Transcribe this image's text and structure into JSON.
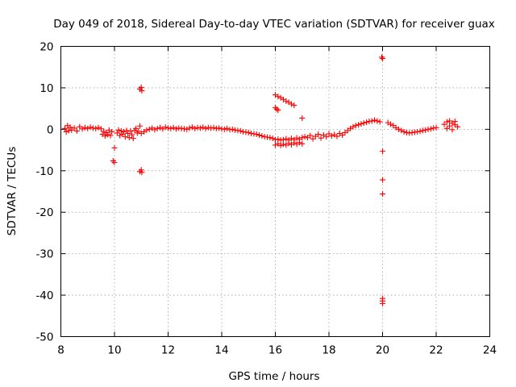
{
  "chart_data": {
    "type": "scatter",
    "title": "Day 049 of 2018, Sidereal Day-to-day VTEC variation (SDTVAR) for receiver guax",
    "xlabel": "GPS time / hours",
    "ylabel": "SDTVAR / TECUs",
    "xlim": [
      8,
      24
    ],
    "ylim": [
      -50,
      20
    ],
    "xticks": [
      "8",
      "10",
      "12",
      "14",
      "16",
      "18",
      "20",
      "22",
      "24"
    ],
    "yticks": [
      "20",
      "10",
      "0",
      "-10",
      "-20",
      "-30",
      "-40",
      "-50"
    ],
    "grid": true,
    "marker": "plus",
    "color": "#ff0000",
    "series": [
      {
        "name": "SDTVAR",
        "points": [
          [
            8.15,
            0.2
          ],
          [
            8.2,
            -0.6
          ],
          [
            8.25,
            0.9
          ],
          [
            8.3,
            -0.3
          ],
          [
            8.35,
            0.5
          ],
          [
            8.4,
            -0.2
          ],
          [
            8.5,
            0.3
          ],
          [
            8.6,
            -0.4
          ],
          [
            8.7,
            0.6
          ],
          [
            8.8,
            0.1
          ],
          [
            8.9,
            0.4
          ],
          [
            9.0,
            0.2
          ],
          [
            9.1,
            0.5
          ],
          [
            9.2,
            0.3
          ],
          [
            9.3,
            0.2
          ],
          [
            9.4,
            0.4
          ],
          [
            9.5,
            0.1
          ],
          [
            9.55,
            -1.2
          ],
          [
            9.6,
            -0.5
          ],
          [
            9.65,
            -1.6
          ],
          [
            9.7,
            -0.8
          ],
          [
            9.75,
            -1.3
          ],
          [
            9.8,
            -0.2
          ],
          [
            9.85,
            -1.5
          ],
          [
            9.9,
            -0.6
          ],
          [
            9.95,
            -7.6
          ],
          [
            10.0,
            -8.0
          ],
          [
            10.0,
            -4.5
          ],
          [
            10.1,
            -0.9
          ],
          [
            10.15,
            -0.2
          ],
          [
            10.2,
            -1.5
          ],
          [
            10.25,
            -0.4
          ],
          [
            10.3,
            -1.2
          ],
          [
            10.35,
            -0.6
          ],
          [
            10.4,
            -1.8
          ],
          [
            10.45,
            -0.3
          ],
          [
            10.5,
            -1.0
          ],
          [
            10.55,
            -2.0
          ],
          [
            10.6,
            -0.4
          ],
          [
            10.65,
            -1.3
          ],
          [
            10.7,
            -2.2
          ],
          [
            10.75,
            -0.3
          ],
          [
            10.8,
            0.2
          ],
          [
            10.85,
            -0.9
          ],
          [
            10.9,
            -0.5
          ],
          [
            10.95,
            0.8
          ],
          [
            11.0,
            -1.0
          ],
          [
            10.95,
            9.7
          ],
          [
            11.0,
            10.1
          ],
          [
            11.02,
            9.3
          ],
          [
            10.95,
            -10.2
          ],
          [
            11.0,
            -9.8
          ],
          [
            11.02,
            -10.4
          ],
          [
            11.1,
            -0.6
          ],
          [
            11.2,
            -0.2
          ],
          [
            11.3,
            0.0
          ],
          [
            11.4,
            0.3
          ],
          [
            11.5,
            -0.1
          ],
          [
            11.6,
            0.2
          ],
          [
            11.7,
            0.4
          ],
          [
            11.8,
            0.1
          ],
          [
            11.9,
            0.5
          ],
          [
            12.0,
            0.3
          ],
          [
            12.1,
            0.2
          ],
          [
            12.2,
            0.4
          ],
          [
            12.3,
            0.1
          ],
          [
            12.4,
            0.3
          ],
          [
            12.5,
            0.2
          ],
          [
            12.6,
            0.1
          ],
          [
            12.7,
            0.0
          ],
          [
            12.8,
            0.3
          ],
          [
            12.9,
            0.5
          ],
          [
            13.0,
            0.2
          ],
          [
            13.1,
            0.4
          ],
          [
            13.2,
            0.3
          ],
          [
            13.3,
            0.5
          ],
          [
            13.4,
            0.2
          ],
          [
            13.5,
            0.4
          ],
          [
            13.6,
            0.3
          ],
          [
            13.7,
            0.4
          ],
          [
            13.8,
            0.2
          ],
          [
            13.9,
            0.3
          ],
          [
            14.0,
            0.1
          ],
          [
            14.1,
            0.0
          ],
          [
            14.2,
            0.2
          ],
          [
            14.3,
            -0.1
          ],
          [
            14.4,
            0.0
          ],
          [
            14.5,
            -0.2
          ],
          [
            14.6,
            -0.3
          ],
          [
            14.7,
            -0.4
          ],
          [
            14.8,
            -0.6
          ],
          [
            14.9,
            -0.7
          ],
          [
            15.0,
            -0.8
          ],
          [
            15.1,
            -1.0
          ],
          [
            15.2,
            -1.1
          ],
          [
            15.3,
            -1.2
          ],
          [
            15.4,
            -1.4
          ],
          [
            15.5,
            -1.6
          ],
          [
            15.6,
            -1.8
          ],
          [
            15.7,
            -1.9
          ],
          [
            15.8,
            -2.0
          ],
          [
            15.9,
            -2.2
          ],
          [
            16.0,
            -2.5
          ],
          [
            16.0,
            -3.8
          ],
          [
            16.0,
            8.3
          ],
          [
            16.1,
            7.9
          ],
          [
            16.2,
            7.6
          ],
          [
            16.3,
            7.2
          ],
          [
            16.4,
            6.8
          ],
          [
            16.5,
            6.5
          ],
          [
            16.6,
            6.1
          ],
          [
            16.7,
            5.8
          ],
          [
            16.0,
            5.2
          ],
          [
            16.05,
            4.9
          ],
          [
            16.1,
            4.6
          ],
          [
            16.1,
            -2.4
          ],
          [
            16.1,
            -3.5
          ],
          [
            16.2,
            -2.6
          ],
          [
            16.2,
            -3.9
          ],
          [
            16.3,
            -2.5
          ],
          [
            16.3,
            -3.6
          ],
          [
            16.4,
            -2.3
          ],
          [
            16.4,
            -3.8
          ],
          [
            16.5,
            -2.6
          ],
          [
            16.5,
            -3.4
          ],
          [
            16.6,
            -2.2
          ],
          [
            16.6,
            -3.7
          ],
          [
            16.7,
            -2.5
          ],
          [
            16.7,
            -3.3
          ],
          [
            16.8,
            -2.1
          ],
          [
            16.8,
            -3.6
          ],
          [
            16.9,
            -2.4
          ],
          [
            16.9,
            -3.2
          ],
          [
            17.0,
            -2.0
          ],
          [
            17.0,
            -3.5
          ],
          [
            17.0,
            2.7
          ],
          [
            17.1,
            -1.8
          ],
          [
            17.2,
            -2.0
          ],
          [
            17.3,
            -1.5
          ],
          [
            17.4,
            -2.3
          ],
          [
            17.5,
            -1.7
          ],
          [
            17.6,
            -1.2
          ],
          [
            17.7,
            -2.1
          ],
          [
            17.8,
            -1.4
          ],
          [
            17.9,
            -1.8
          ],
          [
            18.0,
            -1.1
          ],
          [
            18.1,
            -1.6
          ],
          [
            18.2,
            -1.3
          ],
          [
            18.3,
            -1.7
          ],
          [
            18.4,
            -1.0
          ],
          [
            18.5,
            -1.4
          ],
          [
            18.6,
            -0.8
          ],
          [
            18.7,
            -0.3
          ],
          [
            18.8,
            0.2
          ],
          [
            18.9,
            0.6
          ],
          [
            19.0,
            0.9
          ],
          [
            19.1,
            1.1
          ],
          [
            19.2,
            1.3
          ],
          [
            19.3,
            1.5
          ],
          [
            19.4,
            1.7
          ],
          [
            19.5,
            1.9
          ],
          [
            19.6,
            2.0
          ],
          [
            19.7,
            2.2
          ],
          [
            19.8,
            2.0
          ],
          [
            19.9,
            1.8
          ],
          [
            19.97,
            17.4
          ],
          [
            20.0,
            17.1
          ],
          [
            20.0,
            -5.3
          ],
          [
            20.0,
            -12.2
          ],
          [
            20.0,
            -15.6
          ],
          [
            20.0,
            -40.8
          ],
          [
            20.0,
            -41.4
          ],
          [
            20.0,
            -42.0
          ],
          [
            20.2,
            1.6
          ],
          [
            20.3,
            1.2
          ],
          [
            20.4,
            0.9
          ],
          [
            20.5,
            0.4
          ],
          [
            20.6,
            0.0
          ],
          [
            20.7,
            -0.3
          ],
          [
            20.8,
            -0.6
          ],
          [
            20.9,
            -0.8
          ],
          [
            21.0,
            -0.9
          ],
          [
            21.1,
            -0.8
          ],
          [
            21.2,
            -0.7
          ],
          [
            21.3,
            -0.6
          ],
          [
            21.4,
            -0.5
          ],
          [
            21.5,
            -0.3
          ],
          [
            21.6,
            -0.2
          ],
          [
            21.7,
            0.0
          ],
          [
            21.8,
            0.1
          ],
          [
            21.9,
            0.3
          ],
          [
            22.0,
            0.4
          ],
          [
            22.3,
            1.2
          ],
          [
            22.4,
            1.8
          ],
          [
            22.5,
            2.0
          ],
          [
            22.6,
            1.5
          ],
          [
            22.7,
            1.1
          ],
          [
            22.8,
            0.6
          ],
          [
            22.4,
            0.2
          ],
          [
            22.5,
            0.8
          ],
          [
            22.6,
            -0.1
          ],
          [
            22.7,
            1.9
          ]
        ]
      }
    ]
  }
}
